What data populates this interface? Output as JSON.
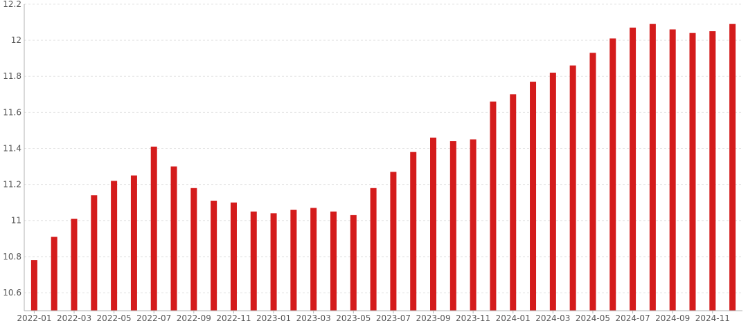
{
  "chart_data": {
    "type": "bar",
    "title": "",
    "xlabel": "",
    "ylabel": "",
    "ylim": [
      10.5,
      12.2
    ],
    "yticks": [
      10.6,
      10.8,
      11,
      11.2,
      11.4,
      11.6,
      11.8,
      12,
      12.2
    ],
    "grid": true,
    "legend": "none",
    "bar_color": "#d41c1c",
    "categories": [
      "2022-01",
      "2022-02",
      "2022-03",
      "2022-04",
      "2022-05",
      "2022-06",
      "2022-07",
      "2022-08",
      "2022-09",
      "2022-10",
      "2022-11",
      "2022-12",
      "2023-01",
      "2023-02",
      "2023-03",
      "2023-04",
      "2023-05",
      "2023-06",
      "2023-07",
      "2023-08",
      "2023-09",
      "2023-10",
      "2023-11",
      "2023-12",
      "2024-01",
      "2024-02",
      "2024-03",
      "2024-04",
      "2024-05",
      "2024-06",
      "2024-07",
      "2024-08",
      "2024-09",
      "2024-10",
      "2024-11",
      "2024-12"
    ],
    "xtick_labels": [
      "2022-01",
      "2022-03",
      "2022-05",
      "2022-07",
      "2022-09",
      "2022-11",
      "2023-01",
      "2023-03",
      "2023-05",
      "2023-07",
      "2023-09",
      "2023-11",
      "2024-01",
      "2024-03",
      "2024-05",
      "2024-07",
      "2024-09",
      "2024-11"
    ],
    "values": [
      10.78,
      10.91,
      11.01,
      11.14,
      11.22,
      11.25,
      11.41,
      11.3,
      11.18,
      11.11,
      11.1,
      11.05,
      11.04,
      11.06,
      11.07,
      11.05,
      11.03,
      11.18,
      11.27,
      11.38,
      11.46,
      11.44,
      11.45,
      11.66,
      11.7,
      11.77,
      11.82,
      11.86,
      11.93,
      12.01,
      12.07,
      12.09,
      12.06,
      12.04,
      12.05,
      12.09
    ]
  }
}
